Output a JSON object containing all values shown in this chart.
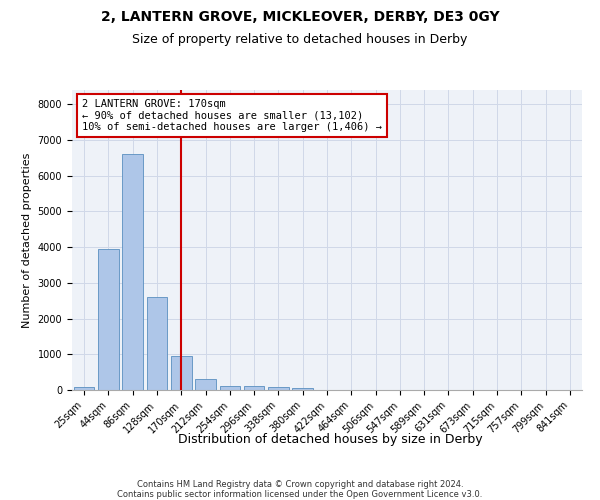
{
  "title": "2, LANTERN GROVE, MICKLEOVER, DERBY, DE3 0GY",
  "subtitle": "Size of property relative to detached houses in Derby",
  "xlabel": "Distribution of detached houses by size in Derby",
  "ylabel": "Number of detached properties",
  "footer_line1": "Contains HM Land Registry data © Crown copyright and database right 2024.",
  "footer_line2": "Contains public sector information licensed under the Open Government Licence v3.0.",
  "bar_labels": [
    "25sqm",
    "44sqm",
    "86sqm",
    "128sqm",
    "170sqm",
    "212sqm",
    "254sqm",
    "296sqm",
    "338sqm",
    "380sqm",
    "422sqm",
    "464sqm",
    "506sqm",
    "547sqm",
    "589sqm",
    "631sqm",
    "673sqm",
    "715sqm",
    "757sqm",
    "799sqm",
    "841sqm"
  ],
  "bar_values": [
    75,
    3950,
    6600,
    2600,
    950,
    320,
    125,
    110,
    85,
    50,
    0,
    0,
    0,
    0,
    0,
    0,
    0,
    0,
    0,
    0,
    0
  ],
  "bar_color": "#aec6e8",
  "bar_edge_color": "#5a8fc0",
  "vline_x_index": 4,
  "vline_color": "#cc0000",
  "annotation_text": "2 LANTERN GROVE: 170sqm\n← 90% of detached houses are smaller (13,102)\n10% of semi-detached houses are larger (1,406) →",
  "annotation_box_color": "#cc0000",
  "ylim": [
    0,
    8400
  ],
  "grid_color": "#d0d8e8",
  "background_color": "#eef2f8",
  "title_fontsize": 10,
  "subtitle_fontsize": 9,
  "ylabel_fontsize": 8,
  "xlabel_fontsize": 9,
  "tick_fontsize": 7,
  "annotation_fontsize": 7.5,
  "footer_fontsize": 6
}
